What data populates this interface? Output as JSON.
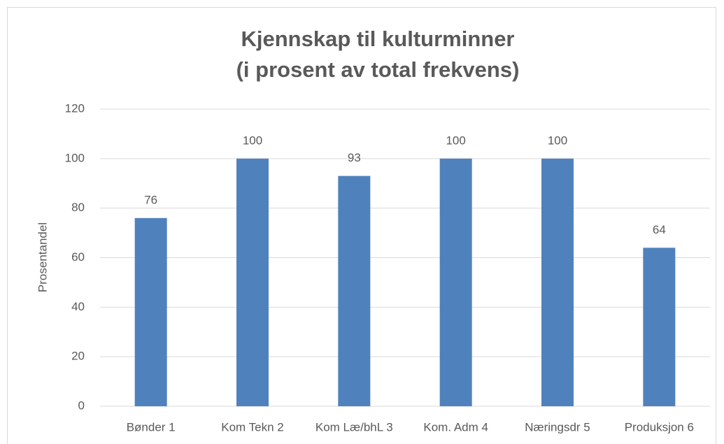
{
  "chart_data": {
    "type": "bar",
    "title": [
      "Kjennskap til kulturminner",
      "(i prosent av total frekvens)"
    ],
    "y_label": "Prosentandel",
    "categories": [
      "Bønder 1",
      "Kom Tekn 2",
      "Kom Læ/bhL 3",
      "Kom. Adm 4",
      "Næringsdr 5",
      "Produksjon 6"
    ],
    "values": [
      76,
      100,
      93,
      100,
      100,
      64
    ],
    "color": "#4f81bd",
    "ylim": [
      0,
      120
    ],
    "yticks": [
      0,
      20,
      40,
      60,
      80,
      100,
      120
    ],
    "grid": true,
    "data_labels": true
  }
}
